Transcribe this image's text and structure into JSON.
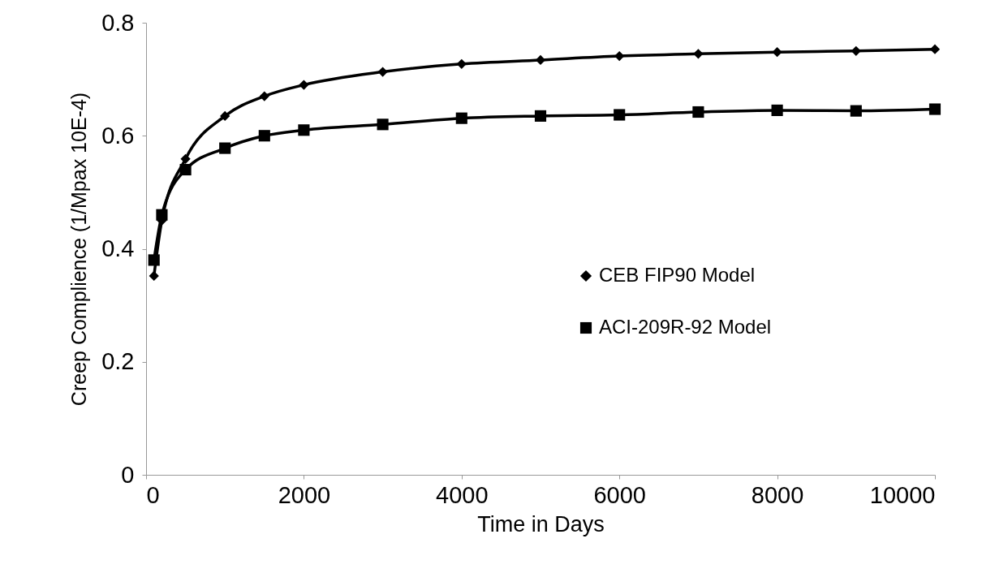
{
  "chart_data": {
    "type": "line",
    "xlabel": "Time in Days",
    "ylabel": "Creep Complience (1/Mpax 10E-4)",
    "x": [
      100,
      200,
      500,
      1000,
      1500,
      2000,
      3000,
      4000,
      5000,
      6000,
      7000,
      8000,
      9000,
      10000
    ],
    "series": [
      {
        "name": "CEB FIP90 Model",
        "color": "#000000",
        "marker": "diamond",
        "values": [
          0.352,
          0.45,
          0.559,
          0.635,
          0.67,
          0.69,
          0.713,
          0.727,
          0.734,
          0.741,
          0.745,
          0.748,
          0.75,
          0.753
        ]
      },
      {
        "name": "ACI-209R-92 Model",
        "color": "#000000",
        "marker": "square",
        "values": [
          0.38,
          0.46,
          0.54,
          0.578,
          0.6,
          0.61,
          0.62,
          0.631,
          0.635,
          0.637,
          0.642,
          0.645,
          0.644,
          0.647
        ]
      }
    ],
    "xlim": [
      0,
      10000
    ],
    "xticks": [
      0,
      2000,
      4000,
      6000,
      8000,
      10000
    ],
    "ylim": [
      0,
      0.8
    ],
    "yticks": [
      0,
      0.2,
      0.4,
      0.6,
      0.8
    ],
    "grid": false,
    "legend": "right",
    "line_style": "solid"
  }
}
